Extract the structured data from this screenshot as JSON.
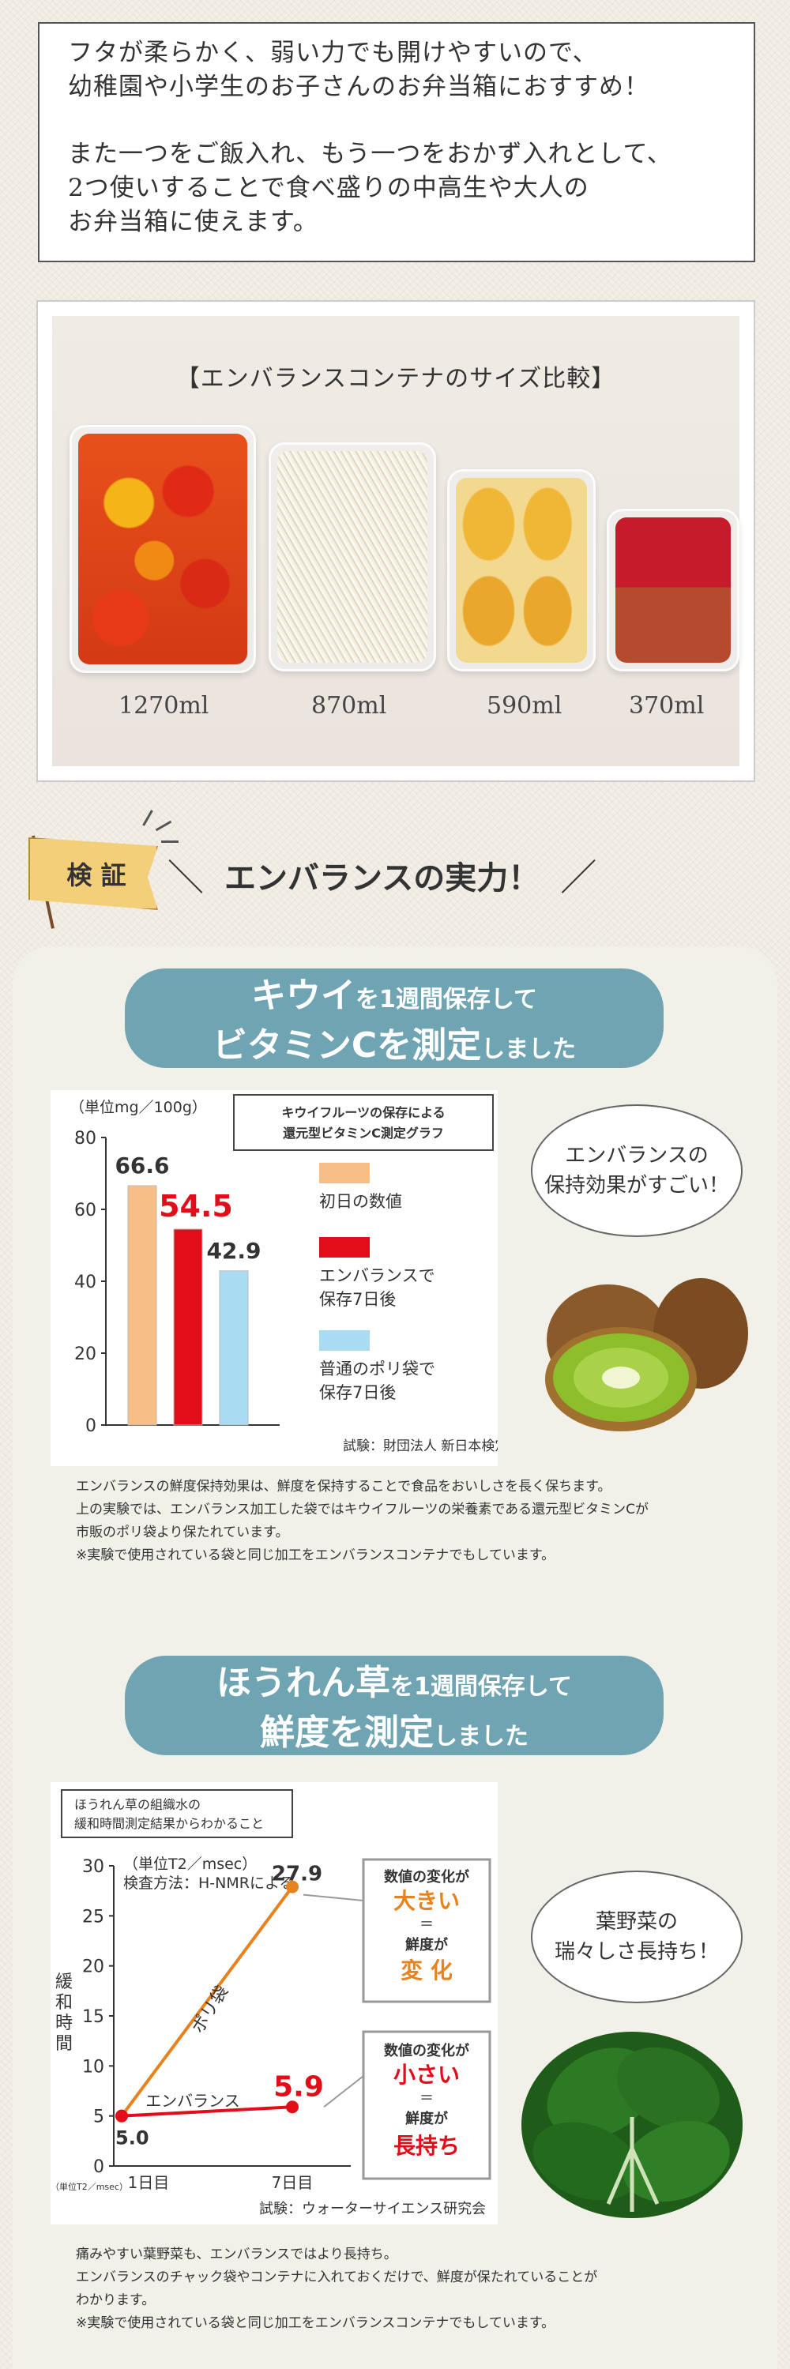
{
  "intro": {
    "para1": [
      "フタが柔らかく、弱い力でも開けやすいので、",
      "幼稚園や小学生のお子さんのお弁当箱におすすめ！"
    ],
    "para2": [
      "また一つをご飯入れ、もう一つをおかず入れとして、",
      "2つ使いすることで食べ盛りの中高生や大人の",
      "お弁当箱に使えます。"
    ]
  },
  "size_compare": {
    "title": "【エンバランスコンテナのサイズ比較】",
    "sizes": [
      "1270ml",
      "870ml",
      "590ml",
      "370ml"
    ]
  },
  "verify": {
    "flag_label": "検 証",
    "title": "エンバランスの実力！",
    "slash_left": "＼",
    "slash_right": "／"
  },
  "kiwi": {
    "headline": {
      "l1_a": "キウイ",
      "l1_b": "を1週間保存して",
      "l2_a": "ビタミンCを測定",
      "l2_b": "しました"
    },
    "bubble": [
      "エンバランスの",
      "保持効果がすごい！"
    ],
    "note": [
      "エンバランスの鮮度保持効果は、鮮度を保持することで食品をおいしさを長く保ちます。",
      "上の実験では、エンバランス加工した袋ではキウイフルーツの栄養素である還元型ビタミンCが",
      "市販のポリ袋より保たれています。",
      "※実験で使用されている袋と同じ加工をエンバランスコンテナでもしています。"
    ]
  },
  "spinach": {
    "headline": {
      "l1_a": "ほうれん草",
      "l1_b": "を1週間保存して",
      "l2_a": "鮮度を測定",
      "l2_b": "しました"
    },
    "bubble": [
      "葉野菜の",
      "瑞々しさ長持ち！"
    ],
    "note": [
      "痛みやすい葉野菜も、エンバランスではより長持ち。",
      "エンバランスのチャック袋やコンテナに入れておくだけで、鮮度が保たれていることが",
      "わかります。",
      "※実験で使用されている袋と同じ加工をエンバランスコンテナでもしています。"
    ]
  },
  "chart_data": [
    {
      "type": "bar",
      "title": [
        "キウイフルーツの保存による",
        "還元型ビタミンC測定グラフ"
      ],
      "ylabel": "（単位mg／100g）",
      "ylim": [
        0,
        80
      ],
      "yticks": [
        0,
        20,
        40,
        60,
        80
      ],
      "categories": [
        "初日の数値",
        "エンバランスで保存7日後",
        "普通のポリ袋で保存7日後"
      ],
      "values": [
        66.6,
        54.5,
        42.9
      ],
      "value_labels": [
        "66.6",
        "54.5",
        "42.9"
      ],
      "colors": [
        "#f7bf86",
        "#e30d1a",
        "#a9dcf3"
      ],
      "legend": [
        [
          "初日の数値"
        ],
        [
          "エンバランスで",
          "保存7日後"
        ],
        [
          "普通のポリ袋で",
          "保存7日後"
        ]
      ],
      "source": "試験：財団法人 新日本検定協会"
    },
    {
      "type": "line",
      "title": [
        "ほうれん草の組織水の",
        "緩和時間測定結果からわかること"
      ],
      "unit_label": "（単位T2／msec）",
      "method_label": "検査方法：H-NMRによる",
      "ylabel": [
        "緩",
        "和",
        "時",
        "間"
      ],
      "ylim": [
        0,
        30
      ],
      "yticks": [
        0,
        5,
        10,
        15,
        20,
        25,
        30
      ],
      "x": [
        "1日目",
        "7日目"
      ],
      "x_unit": "（単位T2／msec）",
      "series": [
        {
          "name": "ポリ袋",
          "values": [
            5.0,
            27.9
          ],
          "color": "#e8821e"
        },
        {
          "name": "エンバランス",
          "values": [
            5.0,
            5.9
          ],
          "color": "#e30d1a"
        }
      ],
      "value_labels": {
        "start": "5.0",
        "poly_end": "27.9",
        "emb_end": "5.9"
      },
      "callout_poly": {
        "l1": "数値の変化が",
        "l2": "大きい",
        "l3": "＝",
        "l4": "鮮度が",
        "l5": "変 化"
      },
      "callout_emb": {
        "l1": "数値の変化が",
        "l2": "小さい",
        "l3": "＝",
        "l4": "鮮度が",
        "l5": "長持ち"
      },
      "source": "試験：ウォーターサイエンス研究会"
    }
  ],
  "colors": {
    "pill": "#6fa4b3",
    "accent_red": "#e30d1a",
    "accent_orange": "#e8821e",
    "panel": "#f1f1ea"
  }
}
